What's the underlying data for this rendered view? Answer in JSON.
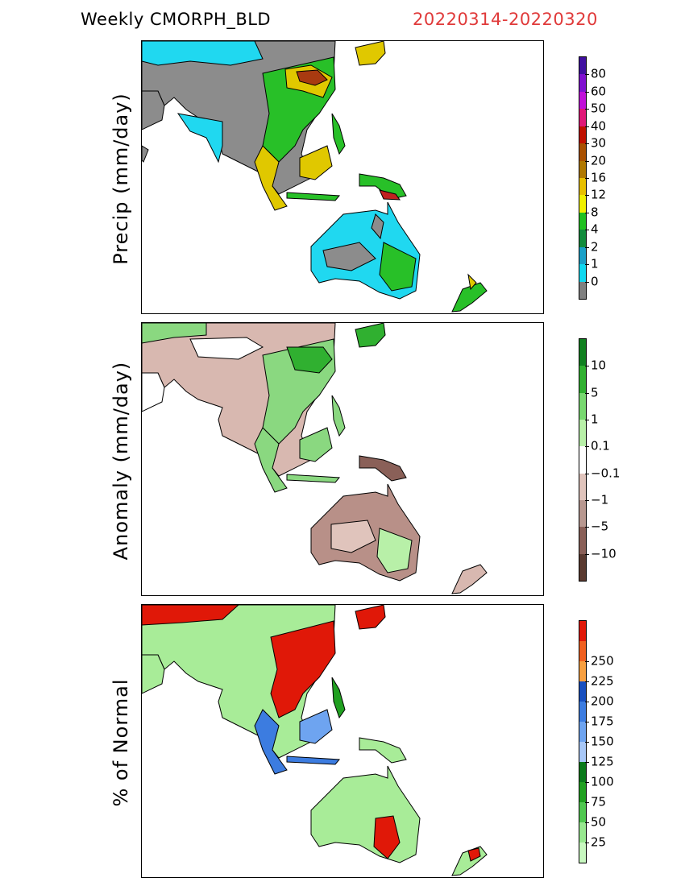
{
  "header": {
    "title": "Weekly CMORPH_BLD",
    "date_range": "20220314-20220320",
    "date_color": "#e03a3a"
  },
  "panels": [
    {
      "id": "precip",
      "ylabel": "Precip (mm/day)",
      "colorbar": {
        "colors": [
          "#808080",
          "#10d8f0",
          "#1aa0c8",
          "#128c3c",
          "#20c020",
          "#f0f000",
          "#e8c000",
          "#b07800",
          "#a85000",
          "#c01000",
          "#e01878",
          "#c010d8",
          "#8010d0",
          "#4010a0"
        ],
        "labels": [
          "0",
          "1",
          "2",
          "4",
          "8",
          "12",
          "16",
          "20",
          "30",
          "40",
          "50",
          "60",
          "80"
        ]
      }
    },
    {
      "id": "anomaly",
      "ylabel": "Anomaly (mm/day)",
      "colorbar": {
        "colors": [
          "#5a3a30",
          "#8a6058",
          "#b89890",
          "#e0c4bc",
          "#ffffff",
          "#b8f0a8",
          "#78d870",
          "#30b030",
          "#108020"
        ],
        "labels": [
          "−10",
          "−5",
          "−1",
          "−0.1",
          "0.1",
          "1",
          "5",
          "10"
        ]
      }
    },
    {
      "id": "percent",
      "ylabel": "% of Normal",
      "colorbar": {
        "colors": [
          "#c8f8c0",
          "#98e890",
          "#50c850",
          "#20a020",
          "#0a7a1a",
          "#a8c8f8",
          "#6ea4f0",
          "#3c7ce0",
          "#1850c0",
          "#f8a040",
          "#f06020",
          "#e01808"
        ],
        "labels": [
          "25",
          "50",
          "75",
          "100",
          "125",
          "150",
          "175",
          "200",
          "225",
          "250"
        ]
      }
    }
  ]
}
